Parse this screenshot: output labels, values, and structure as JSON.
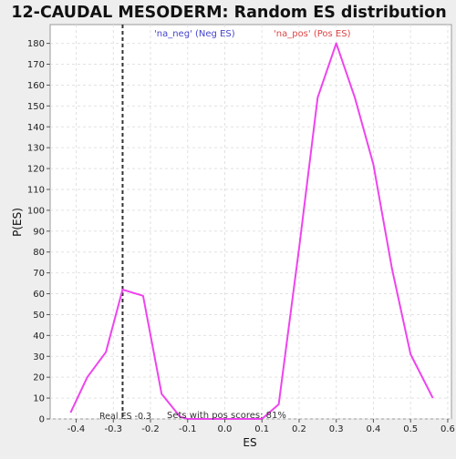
{
  "chart_data": {
    "type": "line",
    "title": "12-CAUDAL MESODERM: Random ES distribution",
    "xlabel": "ES",
    "ylabel": "P(ES)",
    "xlim": [
      -0.47,
      0.61
    ],
    "ylim": [
      0,
      189
    ],
    "x_ticks": [
      -0.4,
      -0.3,
      -0.2,
      -0.1,
      0.0,
      0.1,
      0.2,
      0.3,
      0.4,
      0.5,
      0.6
    ],
    "x_tick_labels": [
      "-0.4",
      "-0.3",
      "-0.2",
      "-0.1",
      "0.0",
      "0.1",
      "0.2",
      "0.3",
      "0.4",
      "0.5",
      "0.6"
    ],
    "y_ticks": [
      0,
      10,
      20,
      30,
      40,
      50,
      60,
      70,
      80,
      90,
      100,
      110,
      120,
      130,
      140,
      150,
      160,
      170,
      180
    ],
    "grid": true,
    "series": [
      {
        "color": "#ee44ee",
        "x": [
          -0.415,
          -0.37,
          -0.32,
          -0.275,
          -0.22,
          -0.17,
          -0.12,
          -0.1,
          0.0,
          0.1,
          0.145,
          0.2,
          0.25,
          0.3,
          0.35,
          0.4,
          0.45,
          0.5,
          0.56
        ],
        "y": [
          3,
          20,
          32,
          62,
          59,
          12,
          1,
          0,
          0,
          0,
          7,
          82,
          154,
          180,
          154,
          122,
          72,
          31,
          10
        ]
      }
    ],
    "reference_line": {
      "x": -0.275,
      "style": "dashed",
      "color": "#333333"
    },
    "annotations": {
      "neg_label": "'na_neg' (Neg ES)",
      "neg_color": "#4444cc",
      "pos_label": "'na_pos' (Pos ES)",
      "pos_color": "#dd4444",
      "real_es": "Real ES -0.3",
      "pos_scores": "Sets with pos scores: 81%"
    }
  }
}
